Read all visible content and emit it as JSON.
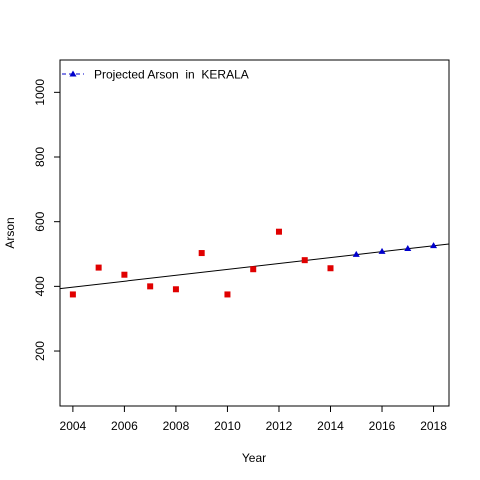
{
  "chart_data": {
    "type": "scatter",
    "xlabel": "Year",
    "ylabel": "Arson",
    "xlim": [
      2003.5,
      2018.6
    ],
    "ylim": [
      30,
      1100
    ],
    "x_ticks": [
      2004,
      2006,
      2008,
      2010,
      2012,
      2014,
      2016,
      2018
    ],
    "y_ticks": [
      200,
      400,
      600,
      800,
      1000
    ],
    "legend": {
      "position": "top-left",
      "label": "Projected Arson  in  KERALA"
    },
    "series": [
      {
        "marker": "square",
        "color": "#e00000",
        "x": [
          2004,
          2005,
          2006,
          2007,
          2008,
          2009,
          2010,
          2011,
          2012,
          2013,
          2014
        ],
        "y": [
          375,
          458,
          436,
          400,
          391,
          503,
          375,
          453,
          569,
          481,
          456
        ]
      },
      {
        "name": "Projected Arson  in  KERALA",
        "marker": "triangle",
        "color": "#0000cc",
        "x": [
          2015,
          2016,
          2017,
          2018
        ],
        "y": [
          499,
          508,
          517,
          526
        ]
      }
    ],
    "trend_line": {
      "x": [
        2003.5,
        2018.6
      ],
      "y": [
        393,
        531
      ]
    },
    "grid": false
  }
}
